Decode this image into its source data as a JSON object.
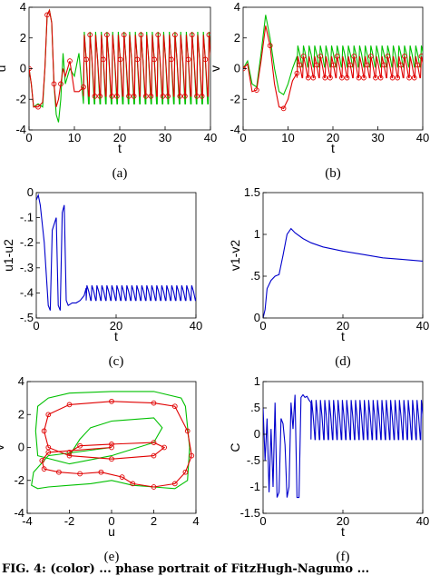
{
  "figure": {
    "footer_text": "FIG. 4: (color) ... phase portrait of FitzHugh-Nagumo ..."
  },
  "colors": {
    "red": "#e00000",
    "green": "#00c000",
    "blue": "#0000cc",
    "axis": "#000000"
  },
  "chart_data": [
    {
      "id": "a",
      "type": "line",
      "caption": "(a)",
      "xlabel": "t",
      "ylabel": "u",
      "xlim": [
        0,
        40
      ],
      "ylim": [
        -4,
        4
      ],
      "xticks": [
        0,
        10,
        20,
        30,
        40
      ],
      "yticks": [
        -4,
        -2,
        0,
        2,
        4
      ],
      "grid": false,
      "series": [
        {
          "color": "green",
          "marker": "none",
          "x": [
            0,
            0.5,
            1,
            2,
            3,
            3.5,
            4,
            4.5,
            5,
            5.5,
            6,
            6.5,
            7,
            7.5,
            8,
            9,
            10,
            11,
            12,
            40
          ],
          "y": [
            0,
            -1,
            -2.5,
            -2.3,
            -2.5,
            0,
            3.5,
            3.8,
            3,
            -1,
            -3,
            -3.5,
            -2,
            1,
            -1,
            0,
            -0.5,
            1,
            -2.3,
            -1.5
          ]
        },
        {
          "color": "red",
          "marker": "circle",
          "x": [
            0,
            0.5,
            1,
            2,
            3,
            3.5,
            4,
            4.5,
            5,
            5.5,
            6,
            6.5,
            7,
            7.5,
            8,
            9,
            10,
            11,
            12,
            40
          ],
          "y": [
            0,
            -1,
            -2.5,
            -2.5,
            -2.2,
            0,
            3.5,
            3.8,
            3,
            -1,
            -2.5,
            -2,
            -1,
            0,
            -0.5,
            0.5,
            -1.5,
            -1.5,
            -1.2,
            -1
          ]
        }
      ],
      "oscillation": {
        "t_start": 12,
        "period": 1.25,
        "green_range": [
          -2.3,
          2.4
        ],
        "red_range": [
          -1.8,
          2.2
        ]
      }
    },
    {
      "id": "b",
      "type": "line",
      "caption": "(b)",
      "xlabel": "t",
      "ylabel": "v",
      "xlim": [
        0,
        40
      ],
      "ylim": [
        -4,
        4
      ],
      "xticks": [
        0,
        10,
        20,
        30,
        40
      ],
      "yticks": [
        -4,
        -2,
        0,
        2,
        4
      ],
      "grid": false,
      "series": [
        {
          "color": "green",
          "marker": "none",
          "x": [
            0,
            1,
            2,
            3,
            4,
            5,
            6,
            7,
            8,
            9,
            10,
            11,
            12,
            40
          ],
          "y": [
            0,
            0.5,
            -1,
            -1.2,
            1,
            3.5,
            2,
            0,
            -1.5,
            -1.7,
            -1,
            0,
            0.8,
            0.8
          ]
        },
        {
          "color": "red",
          "marker": "circle",
          "x": [
            0,
            1,
            2,
            3,
            4,
            5,
            6,
            7,
            8,
            9,
            10,
            11,
            12,
            40
          ],
          "y": [
            0,
            0.3,
            -1.5,
            -1.4,
            0.5,
            2.8,
            1.5,
            -1,
            -2.5,
            -2.6,
            -2,
            -0.8,
            -0.3,
            0
          ]
        }
      ],
      "oscillation": {
        "t_start": 12,
        "period": 1.25,
        "green_range": [
          0.1,
          1.5
        ],
        "red_range": [
          -0.6,
          0.8
        ]
      }
    },
    {
      "id": "c",
      "type": "line",
      "caption": "(c)",
      "xlabel": "t",
      "ylabel": "u1-u2",
      "xlim": [
        0,
        40
      ],
      "ylim": [
        -0.5,
        0
      ],
      "xticks": [
        0,
        20,
        40
      ],
      "yticks": [
        -0.5,
        -0.4,
        -0.3,
        -0.2,
        -0.1,
        0
      ],
      "grid": false,
      "series": [
        {
          "color": "blue",
          "marker": "none",
          "x": [
            0,
            0.5,
            1,
            2,
            3,
            3.5,
            4,
            5,
            5.5,
            6,
            6.5,
            7,
            7.5,
            8,
            9,
            10,
            11,
            12,
            12.5
          ],
          "y": [
            -0.03,
            -0.01,
            -0.05,
            -0.2,
            -0.45,
            -0.47,
            -0.15,
            -0.1,
            -0.45,
            -0.47,
            -0.08,
            -0.05,
            -0.43,
            -0.45,
            -0.44,
            -0.44,
            -0.43,
            -0.41,
            -0.38
          ]
        }
      ],
      "oscillation": {
        "t_start": 12.5,
        "period": 1.25,
        "range": [
          -0.43,
          -0.37
        ]
      }
    },
    {
      "id": "d",
      "type": "line",
      "caption": "(d)",
      "xlabel": "t",
      "ylabel": "v1-v2",
      "xlim": [
        0,
        40
      ],
      "ylim": [
        0,
        1.5
      ],
      "xticks": [
        0,
        20,
        40
      ],
      "yticks": [
        0,
        0.5,
        1,
        1.5
      ],
      "grid": false,
      "series": [
        {
          "color": "blue",
          "marker": "none",
          "x": [
            0,
            0.5,
            1,
            2,
            3,
            4,
            5,
            6,
            7,
            8,
            10,
            12,
            15,
            20,
            25,
            30,
            35,
            40
          ],
          "y": [
            0,
            0.1,
            0.35,
            0.45,
            0.5,
            0.52,
            0.75,
            1.0,
            1.07,
            1.02,
            0.95,
            0.9,
            0.85,
            0.8,
            0.76,
            0.72,
            0.7,
            0.68
          ]
        }
      ]
    },
    {
      "id": "e",
      "type": "line",
      "caption": "(e)",
      "xlabel": "u",
      "ylabel": "v",
      "xlim": [
        -4,
        4
      ],
      "ylim": [
        -4,
        4
      ],
      "xticks": [
        -4,
        -2,
        0,
        2,
        4
      ],
      "yticks": [
        -4,
        -2,
        0,
        2,
        4
      ],
      "grid": false,
      "series": [
        {
          "color": "green",
          "marker": "none",
          "x": [
            0,
            -3,
            -3.7,
            -3.8,
            -3.5,
            -3,
            -2,
            -1,
            0,
            1,
            2,
            3,
            3.6,
            3.7,
            3.5,
            3.3,
            2,
            0,
            -2,
            -3,
            -3.5,
            -3.6,
            -3.5,
            -2,
            0,
            2,
            2.4,
            2,
            0,
            -1,
            -1.5,
            -2
          ],
          "y": [
            0,
            -0.5,
            -1.5,
            -2.3,
            -2.5,
            -2.4,
            -2.3,
            -2.2,
            -2.0,
            -2.3,
            -2.4,
            -2.5,
            -2,
            0,
            2.5,
            3.0,
            3.4,
            3.4,
            3.3,
            3,
            2.5,
            1,
            -0.5,
            -1,
            -0.5,
            0.3,
            1.2,
            1.8,
            1.6,
            1.2,
            0.5,
            -0.5
          ]
        },
        {
          "color": "red",
          "marker": "circle",
          "x": [
            0,
            -3,
            -3.3,
            -3.2,
            -2.5,
            -1.5,
            -0.5,
            0.5,
            1,
            2,
            3,
            3.5,
            3.8,
            3.6,
            3,
            2,
            0,
            -2,
            -3,
            -3.2,
            -3,
            -2,
            0,
            2,
            2.5,
            2,
            0,
            -1.5,
            -2
          ],
          "y": [
            0,
            -0.3,
            -0.8,
            -1.3,
            -1.5,
            -1.6,
            -1.5,
            -1.8,
            -2.2,
            -2.4,
            -2.2,
            -1.5,
            -0.5,
            1,
            2.5,
            2.7,
            2.8,
            2.6,
            2.0,
            1.0,
            0,
            -0.5,
            -0.7,
            -0.5,
            0,
            0.3,
            0.2,
            0.1,
            -0.3
          ]
        }
      ]
    },
    {
      "id": "f",
      "type": "line",
      "caption": "(f)",
      "xlabel": "t",
      "ylabel": "C",
      "xlim": [
        0,
        40
      ],
      "ylim": [
        -1.5,
        1
      ],
      "xticks": [
        0,
        20,
        40
      ],
      "yticks": [
        -1.5,
        -1,
        -0.5,
        0,
        0.5,
        1
      ],
      "grid": false,
      "series": [
        {
          "color": "blue",
          "marker": "none",
          "x": [
            0,
            0.5,
            1,
            1.5,
            2,
            2.5,
            3,
            3.5,
            4,
            4.5,
            5,
            5.5,
            6,
            6.5,
            7,
            7.5,
            8,
            8.5,
            9,
            9.5,
            10,
            10.5,
            11,
            11.5,
            12
          ],
          "y": [
            0.5,
            -0.5,
            0.3,
            -1.1,
            0.1,
            -1.0,
            0.6,
            -1.2,
            -1.1,
            0.3,
            0.2,
            -0.2,
            -1.2,
            -1.0,
            0.6,
            0.1,
            0.75,
            -1.2,
            -1.2,
            0.7,
            0.75,
            0.7,
            0.72,
            0.65,
            0.6
          ]
        }
      ],
      "oscillation": {
        "t_start": 12,
        "period": 1.1,
        "range": [
          -0.1,
          0.65
        ]
      }
    }
  ]
}
